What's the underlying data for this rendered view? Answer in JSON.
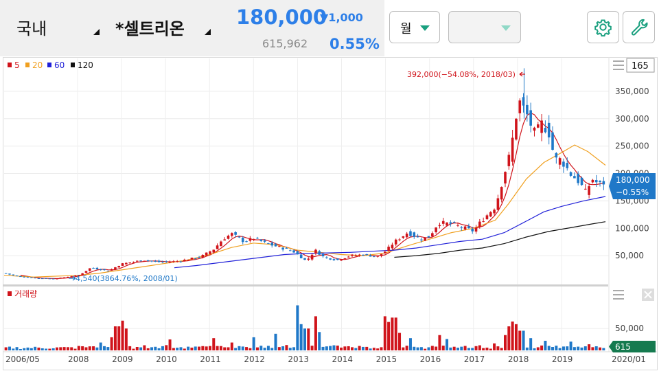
{
  "header": {
    "market": "국내",
    "stock_name": "*셀트리온",
    "price": "180,000",
    "change": "▼1,000",
    "volume": "615,962",
    "change_pct": "0.55%",
    "period": "월"
  },
  "colors": {
    "up": "#d0141b",
    "down": "#1f78c8",
    "accent": "#1aa07f",
    "price_blue": "#2d7fe8",
    "ma5": "#d0141b",
    "ma20": "#f0a020",
    "ma60": "#2020d8",
    "ma120": "#111111"
  },
  "icons": {
    "settings": "gear-icon",
    "tools": "wrench-icon",
    "menu": "menu-icon",
    "close": "close-icon"
  },
  "chart_data": {
    "type": "candlestick",
    "interval": "monthly",
    "legend": [
      {
        "label": "5",
        "color": "#d0141b"
      },
      {
        "label": "20",
        "color": "#f0a020"
      },
      {
        "label": "60",
        "color": "#2020d8"
      },
      {
        "label": "120",
        "color": "#111111"
      }
    ],
    "visible_count": "165",
    "y_ticks": [
      "350,000",
      "300,000",
      "250,000",
      "200,000",
      "150,000",
      "100,000",
      "50,000"
    ],
    "y_tick_values": [
      350000,
      300000,
      250000,
      200000,
      150000,
      100000,
      50000
    ],
    "ylim": [
      0,
      400000
    ],
    "x_ticks": [
      "2006/05",
      "2008",
      "2009",
      "2010",
      "2011",
      "2012",
      "2013",
      "2014",
      "2015",
      "2016",
      "2017",
      "2018",
      "2019",
      "2020/01"
    ],
    "x_tick_values": [
      2006.33,
      2008,
      2009,
      2010,
      2011,
      2012,
      2013,
      2014,
      2015,
      2016,
      2017,
      2018,
      2019,
      2020
    ],
    "xlim": [
      2006.33,
      2020.0
    ],
    "annotation_high": "392,000(−54.08%, 2018/03)",
    "annotation_low": "4,540(3864.76%, 2008/01)",
    "current_price_label": "180,000",
    "current_change_label": "−0.55%",
    "current_price": 180000,
    "price_keypoints": [
      [
        2006.33,
        18000
      ],
      [
        2006.6,
        13000
      ],
      [
        2007,
        9000
      ],
      [
        2007.5,
        8000
      ],
      [
        2008.05,
        15000
      ],
      [
        2008.3,
        28000
      ],
      [
        2008.7,
        22000
      ],
      [
        2009,
        35000
      ],
      [
        2009.5,
        42000
      ],
      [
        2009.9,
        38000
      ],
      [
        2010.3,
        40000
      ],
      [
        2010.8,
        48000
      ],
      [
        2011.1,
        62000
      ],
      [
        2011.3,
        80000
      ],
      [
        2011.5,
        90000
      ],
      [
        2011.8,
        75000
      ],
      [
        2012,
        82000
      ],
      [
        2012.3,
        72000
      ],
      [
        2012.6,
        65000
      ],
      [
        2012.9,
        58000
      ],
      [
        2013.2,
        40000
      ],
      [
        2013.4,
        60000
      ],
      [
        2013.6,
        47000
      ],
      [
        2013.9,
        42000
      ],
      [
        2014.2,
        50000
      ],
      [
        2014.5,
        52000
      ],
      [
        2014.8,
        48000
      ],
      [
        2015.0,
        58000
      ],
      [
        2015.2,
        75000
      ],
      [
        2015.5,
        92000
      ],
      [
        2015.8,
        80000
      ],
      [
        2016,
        85000
      ],
      [
        2016.2,
        110000
      ],
      [
        2016.5,
        108000
      ],
      [
        2016.8,
        100000
      ],
      [
        2017,
        95000
      ],
      [
        2017.2,
        115000
      ],
      [
        2017.5,
        140000
      ],
      [
        2017.7,
        200000
      ],
      [
        2017.85,
        240000
      ],
      [
        2017.95,
        300000
      ],
      [
        2018.05,
        330000
      ],
      [
        2018.2,
        310000
      ],
      [
        2018.4,
        270000
      ],
      [
        2018.55,
        290000
      ],
      [
        2018.7,
        280000
      ],
      [
        2018.85,
        225000
      ],
      [
        2019.0,
        225000
      ],
      [
        2019.2,
        200000
      ],
      [
        2019.4,
        185000
      ],
      [
        2019.55,
        165000
      ],
      [
        2019.7,
        190000
      ],
      [
        2019.85,
        180000
      ],
      [
        2020,
        180000
      ]
    ],
    "ma20": [
      [
        2006.33,
        14000
      ],
      [
        2007,
        11000
      ],
      [
        2008,
        14000
      ],
      [
        2008.5,
        18000
      ],
      [
        2009,
        24000
      ],
      [
        2009.5,
        30000
      ],
      [
        2010,
        36000
      ],
      [
        2010.5,
        42000
      ],
      [
        2011,
        52000
      ],
      [
        2011.5,
        65000
      ],
      [
        2012,
        73000
      ],
      [
        2012.5,
        70000
      ],
      [
        2013,
        60000
      ],
      [
        2013.5,
        56000
      ],
      [
        2014,
        52000
      ],
      [
        2014.5,
        50000
      ],
      [
        2015,
        55000
      ],
      [
        2015.5,
        68000
      ],
      [
        2016,
        80000
      ],
      [
        2016.5,
        92000
      ],
      [
        2017,
        100000
      ],
      [
        2017.5,
        115000
      ],
      [
        2017.8,
        145000
      ],
      [
        2018.2,
        190000
      ],
      [
        2018.6,
        220000
      ],
      [
        2019,
        238000
      ],
      [
        2019.3,
        252000
      ],
      [
        2019.6,
        240000
      ],
      [
        2020,
        215000
      ]
    ],
    "ma60": [
      [
        2010.2,
        28000
      ],
      [
        2010.7,
        32000
      ],
      [
        2011.2,
        37000
      ],
      [
        2011.7,
        42000
      ],
      [
        2012.2,
        47000
      ],
      [
        2012.7,
        52000
      ],
      [
        2013.2,
        54000
      ],
      [
        2013.7,
        55000
      ],
      [
        2014.2,
        56000
      ],
      [
        2014.7,
        58000
      ],
      [
        2015.2,
        60000
      ],
      [
        2015.7,
        64000
      ],
      [
        2016.2,
        70000
      ],
      [
        2016.7,
        76000
      ],
      [
        2017.2,
        80000
      ],
      [
        2017.7,
        92000
      ],
      [
        2018.2,
        113000
      ],
      [
        2018.6,
        130000
      ],
      [
        2019,
        140000
      ],
      [
        2019.5,
        150000
      ],
      [
        2020,
        158000
      ]
    ],
    "ma120": [
      [
        2015.2,
        47000
      ],
      [
        2015.7,
        50000
      ],
      [
        2016.2,
        54000
      ],
      [
        2016.7,
        60000
      ],
      [
        2017.2,
        64000
      ],
      [
        2017.7,
        72000
      ],
      [
        2018.2,
        84000
      ],
      [
        2018.7,
        94000
      ],
      [
        2019.2,
        101000
      ],
      [
        2019.7,
        108000
      ],
      [
        2020,
        112000
      ]
    ],
    "volume_legend": "거래량",
    "volume_ticks": [
      "50,000"
    ],
    "volume_tick_values": [
      50000
    ],
    "volume_ylim": [
      0,
      110000
    ],
    "volume_current_label": "615",
    "volume_spikes": [
      [
        2008.1,
        8000
      ],
      [
        2008.5,
        18000
      ],
      [
        2008.8,
        30000
      ],
      [
        2008.9,
        55000
      ],
      [
        2009.0,
        68000
      ],
      [
        2009.1,
        50000
      ],
      [
        2010.0,
        12000
      ],
      [
        2010.1,
        25000
      ],
      [
        2011.1,
        28000
      ],
      [
        2011.5,
        18000
      ],
      [
        2012.0,
        30000
      ],
      [
        2012.5,
        38000
      ],
      [
        2013.0,
        103000
      ],
      [
        2013.1,
        60000
      ],
      [
        2013.2,
        50000
      ],
      [
        2013.4,
        78000
      ],
      [
        2013.5,
        42000
      ],
      [
        2015.0,
        78000
      ],
      [
        2015.1,
        65000
      ],
      [
        2015.2,
        75000
      ],
      [
        2015.3,
        40000
      ],
      [
        2015.6,
        28000
      ],
      [
        2016.2,
        35000
      ],
      [
        2016.4,
        26000
      ],
      [
        2017.5,
        16000
      ],
      [
        2017.7,
        35000
      ],
      [
        2017.8,
        55000
      ],
      [
        2017.9,
        66000
      ],
      [
        2018.0,
        60000
      ],
      [
        2018.1,
        45000
      ],
      [
        2018.3,
        28000
      ],
      [
        2018.6,
        22000
      ],
      [
        2019.2,
        20000
      ],
      [
        2019.6,
        14000
      ]
    ]
  }
}
